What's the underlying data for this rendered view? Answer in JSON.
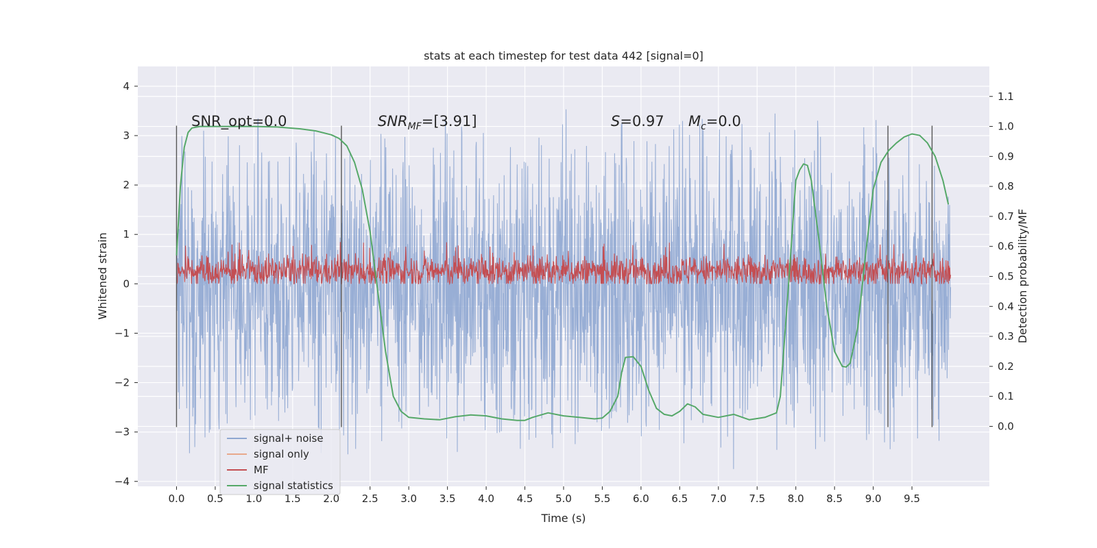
{
  "chart_data": {
    "type": "line",
    "title": "stats at each timestep for test data 442 [signal=0]",
    "xlabel": "Time (s)",
    "ylabel": "Whitened strain",
    "y2label": "Detection probability/MF",
    "xlim": [
      -0.5,
      10.5
    ],
    "ylim": [
      -4.1,
      4.4
    ],
    "y2lim": [
      -0.2,
      1.2
    ],
    "xticks": [
      "0.0",
      "0.5",
      "1.0",
      "1.5",
      "2.0",
      "2.5",
      "3.0",
      "3.5",
      "4.0",
      "4.5",
      "5.0",
      "5.5",
      "6.0",
      "6.5",
      "7.0",
      "7.5",
      "8.0",
      "8.5",
      "9.0",
      "9.5"
    ],
    "yticks": [
      "4",
      "3",
      "2",
      "1",
      "0",
      "−1",
      "−2",
      "−3",
      "−4"
    ],
    "y2ticks": [
      "1.1",
      "1.0",
      "0.9",
      "0.8",
      "0.7",
      "0.6",
      "0.5",
      "0.4",
      "0.3",
      "0.2",
      "0.1",
      "0.0"
    ],
    "grid": true,
    "legend_position": "lower-left",
    "annotations": {
      "snr_opt": "SNR_opt=0.0",
      "snr_mf_sym": "SNR",
      "snr_mf_sub": "MF",
      "snr_mf_rest": "=[3.91]",
      "s_sym": "S",
      "s_rest": "=0.97",
      "mc_sym": "M",
      "mc_sub": "c",
      "mc_rest": "=0.0"
    },
    "noise": {
      "x_range": [
        0.0,
        10.0
      ],
      "center": -0.05,
      "band": 1.25,
      "extreme_max": 4.05,
      "extreme_min": -3.75
    },
    "mf": {
      "x_range": [
        0.0,
        10.0
      ],
      "baseline": 0.25,
      "range": [
        0.0,
        0.92
      ]
    },
    "vertical_markers_x": [
      0.0,
      2.13,
      9.19,
      9.76
    ],
    "vertical_markers_range": [
      -2.9,
      3.2
    ],
    "signal_statistics": {
      "name": "signal statistics",
      "x": [
        0.0,
        0.05,
        0.1,
        0.15,
        0.2,
        0.3,
        0.5,
        0.8,
        1.0,
        1.3,
        1.6,
        1.8,
        2.0,
        2.1,
        2.2,
        2.3,
        2.4,
        2.5,
        2.6,
        2.7,
        2.8,
        2.9,
        3.0,
        3.2,
        3.4,
        3.6,
        3.8,
        4.0,
        4.2,
        4.4,
        4.5,
        4.6,
        4.8,
        5.0,
        5.2,
        5.4,
        5.5,
        5.6,
        5.7,
        5.75,
        5.8,
        5.9,
        6.0,
        6.1,
        6.2,
        6.3,
        6.4,
        6.5,
        6.6,
        6.7,
        6.8,
        7.0,
        7.2,
        7.4,
        7.6,
        7.75,
        7.8,
        7.9,
        8.0,
        8.05,
        8.1,
        8.15,
        8.2,
        8.3,
        8.4,
        8.5,
        8.6,
        8.65,
        8.7,
        8.8,
        8.9,
        9.0,
        9.1,
        9.2,
        9.3,
        9.4,
        9.5,
        9.6,
        9.7,
        9.8,
        9.9,
        9.97
      ],
      "y": [
        0.57,
        0.8,
        0.93,
        0.98,
        0.995,
        1.0,
        1.0,
        1.0,
        1.0,
        0.998,
        0.992,
        0.985,
        0.972,
        0.96,
        0.935,
        0.88,
        0.79,
        0.65,
        0.45,
        0.25,
        0.1,
        0.05,
        0.03,
        0.025,
        0.022,
        0.032,
        0.038,
        0.035,
        0.025,
        0.02,
        0.02,
        0.03,
        0.045,
        0.035,
        0.03,
        0.025,
        0.028,
        0.05,
        0.1,
        0.18,
        0.23,
        0.232,
        0.2,
        0.12,
        0.06,
        0.04,
        0.035,
        0.05,
        0.075,
        0.065,
        0.04,
        0.03,
        0.04,
        0.022,
        0.03,
        0.045,
        0.1,
        0.45,
        0.82,
        0.855,
        0.875,
        0.87,
        0.82,
        0.62,
        0.4,
        0.25,
        0.2,
        0.198,
        0.21,
        0.33,
        0.57,
        0.79,
        0.88,
        0.92,
        0.945,
        0.965,
        0.975,
        0.97,
        0.945,
        0.9,
        0.82,
        0.74
      ]
    },
    "legend": [
      "signal+ noise",
      "signal only",
      "MF",
      "signal statistics"
    ],
    "colors": {
      "noise": "#8fa7d1",
      "signal_only": "#e8a88b",
      "mf": "#c44e52",
      "signal_statistics": "#55a868",
      "background": "#eaeaf2",
      "grid": "#ffffff",
      "marker": "#555555"
    }
  }
}
